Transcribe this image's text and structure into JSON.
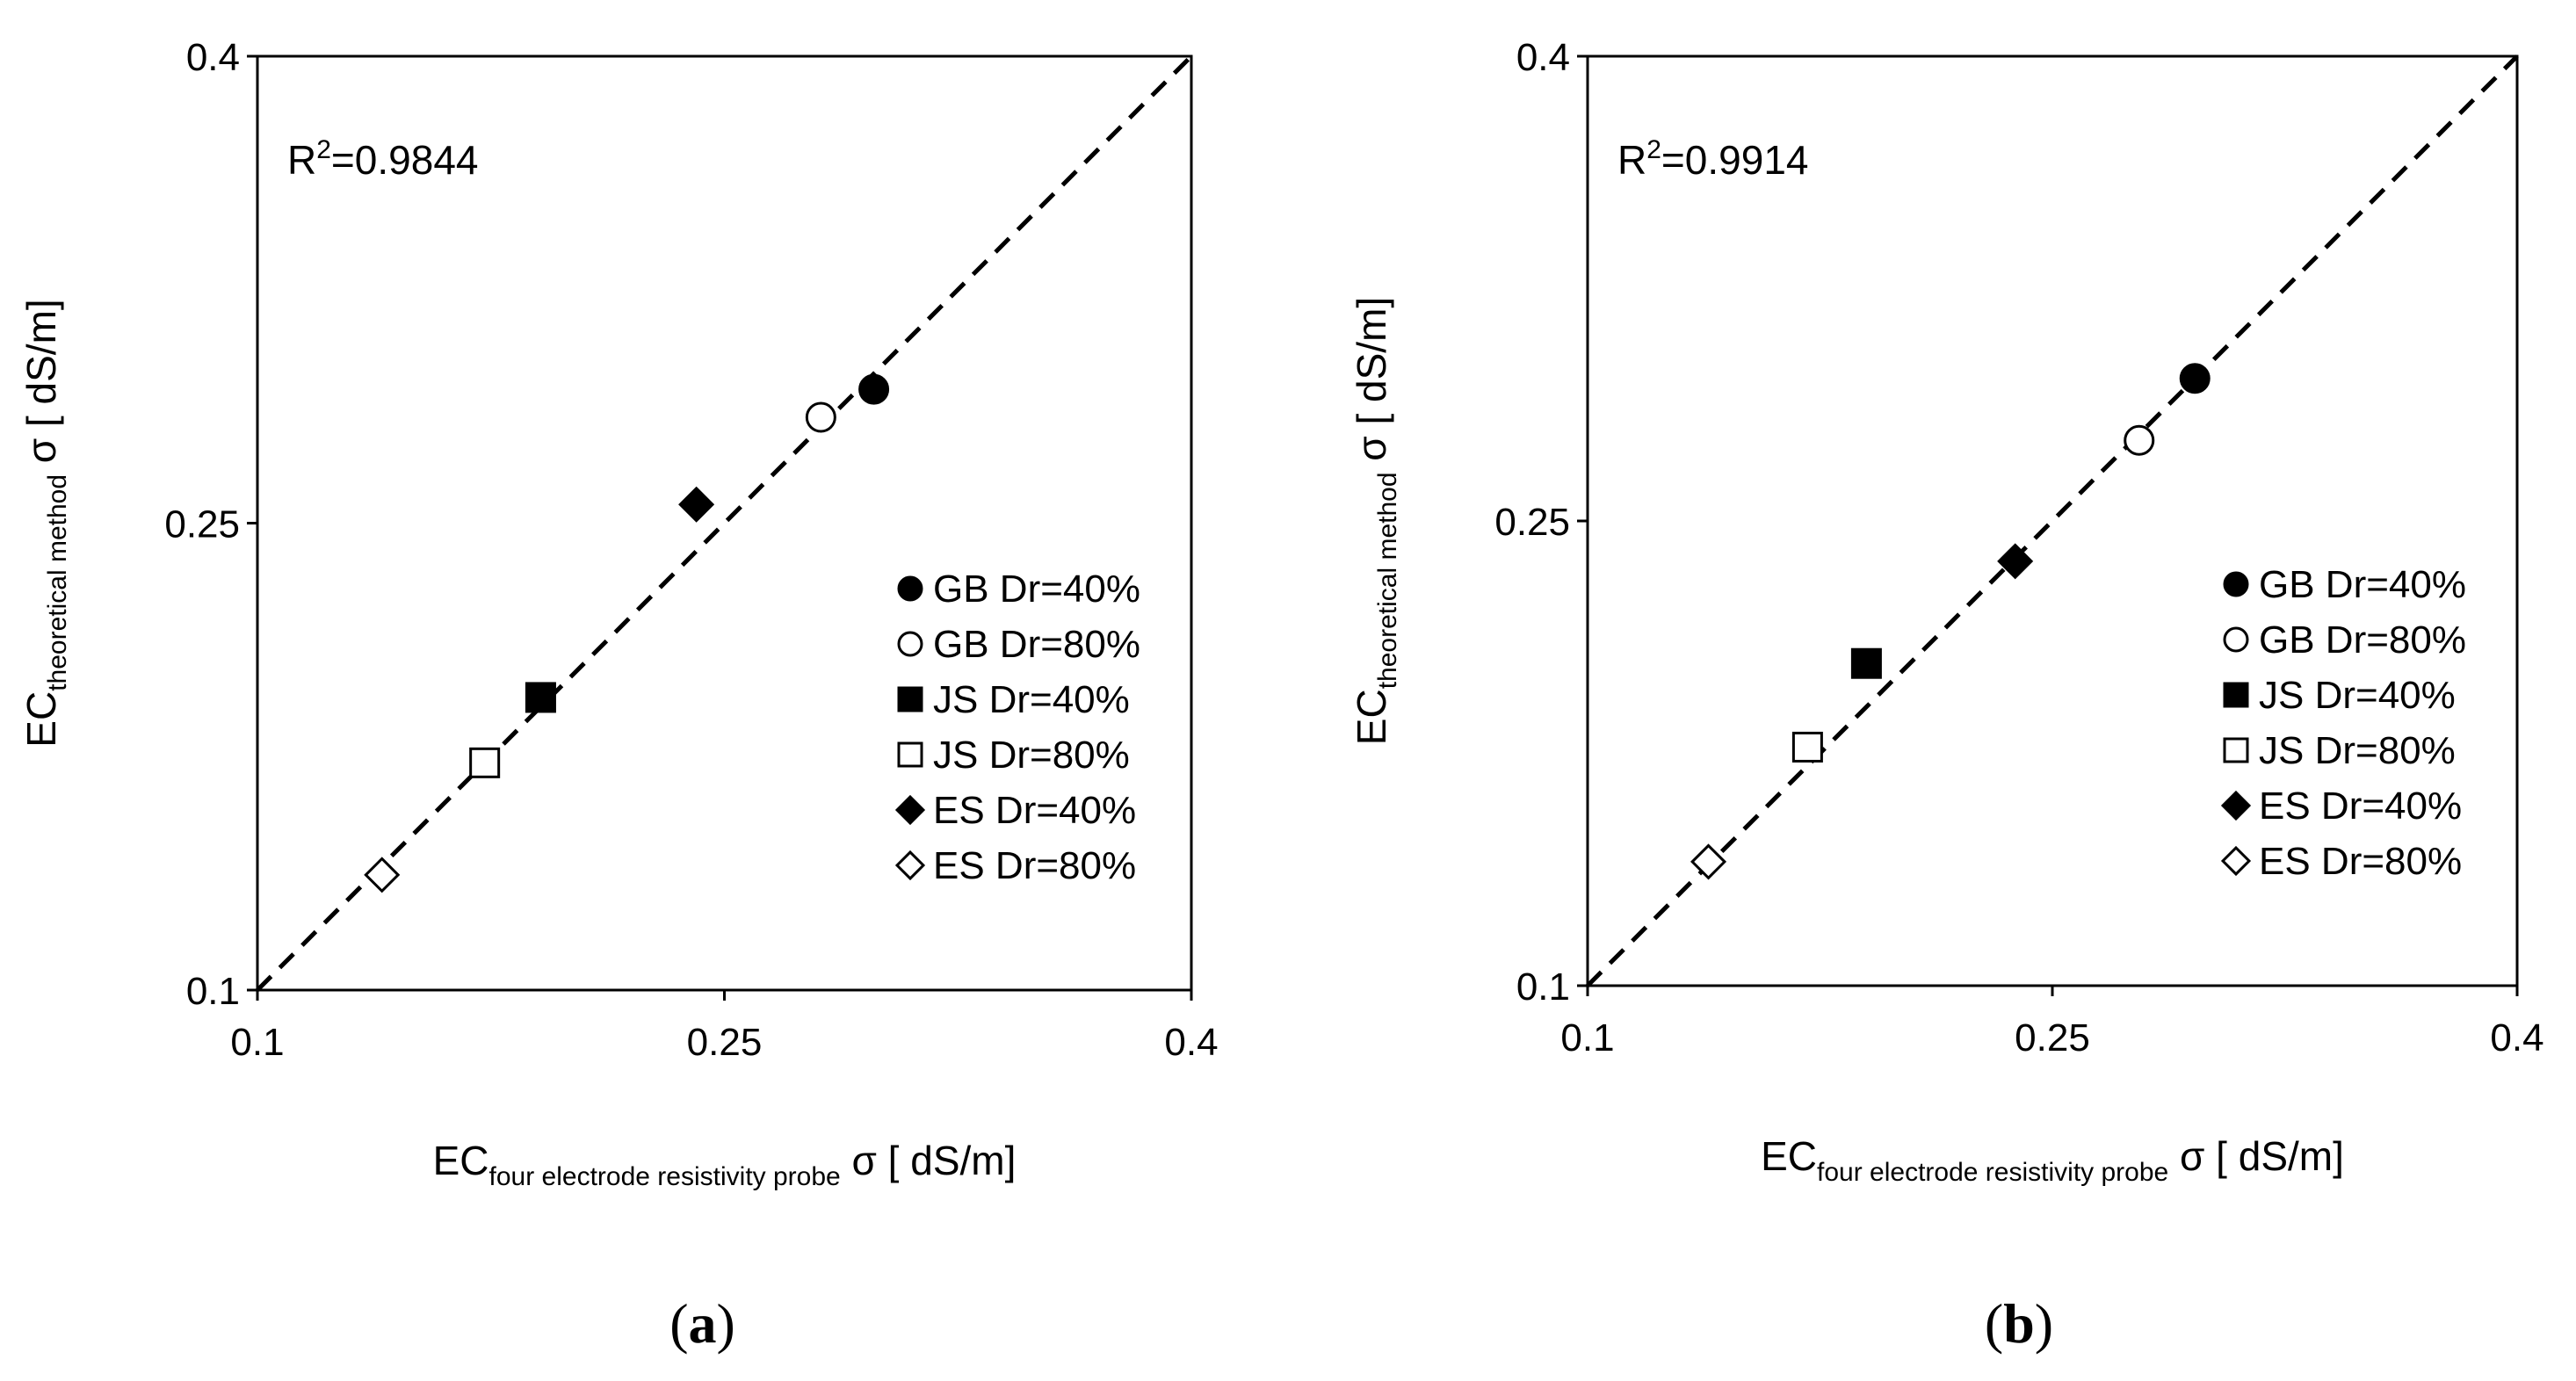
{
  "chart_data": [
    {
      "type": "scatter",
      "panel_label": "(a)",
      "panel_letter": "a",
      "annotation": {
        "r2_base": "R",
        "r2_sup": "2",
        "r2_value": "=0.9844"
      },
      "xlabel": {
        "main": "EC",
        "sub": "four electrode resistivity probe",
        "unit": " σ [ dS/m]"
      },
      "ylabel": {
        "main": "EC",
        "sub": "theoretical method",
        "unit": " σ [ dS/m]"
      },
      "xlim": [
        0.1,
        0.4
      ],
      "ylim": [
        0.1,
        0.4
      ],
      "ticks": [
        "0.1",
        "0.25",
        "0.4"
      ],
      "tick_values": [
        0.1,
        0.25,
        0.4
      ],
      "reference_line": "y = x (dashed)",
      "legend_position": "bottom-right",
      "series": [
        {
          "name": "GB Dr=40%",
          "marker": "circle-filled",
          "x": 0.298,
          "y": 0.293
        },
        {
          "name": "GB Dr=80%",
          "marker": "circle-open",
          "x": 0.281,
          "y": 0.284
        },
        {
          "name": "JS Dr=40%",
          "marker": "square-filled",
          "x": 0.191,
          "y": 0.194
        },
        {
          "name": "JS Dr=80%",
          "marker": "square-open",
          "x": 0.173,
          "y": 0.173
        },
        {
          "name": "ES Dr=40%",
          "marker": "diamond-filled",
          "x": 0.241,
          "y": 0.256
        },
        {
          "name": "ES Dr=80%",
          "marker": "diamond-open",
          "x": 0.14,
          "y": 0.137
        }
      ]
    },
    {
      "type": "scatter",
      "panel_label": "(b)",
      "panel_letter": "b",
      "annotation": {
        "r2_base": "R",
        "r2_sup": "2",
        "r2_value": "=0.9914"
      },
      "xlabel": {
        "main": "EC",
        "sub": "four electrode resistivity probe",
        "unit": " σ [ dS/m]"
      },
      "ylabel": {
        "main": "EC",
        "sub": "theoretical method",
        "unit": " σ [ dS/m]"
      },
      "xlim": [
        0.1,
        0.4
      ],
      "ylim": [
        0.1,
        0.4
      ],
      "ticks": [
        "0.1",
        "0.25",
        "0.4"
      ],
      "tick_values": [
        0.1,
        0.25,
        0.4
      ],
      "reference_line": "y = x (dashed)",
      "legend_position": "bottom-right",
      "series": [
        {
          "name": "GB Dr=40%",
          "marker": "circle-filled",
          "x": 0.296,
          "y": 0.296
        },
        {
          "name": "GB Dr=80%",
          "marker": "circle-open",
          "x": 0.278,
          "y": 0.276
        },
        {
          "name": "JS Dr=40%",
          "marker": "square-filled",
          "x": 0.19,
          "y": 0.204
        },
        {
          "name": "JS Dr=80%",
          "marker": "square-open",
          "x": 0.171,
          "y": 0.177
        },
        {
          "name": "ES Dr=40%",
          "marker": "diamond-filled",
          "x": 0.238,
          "y": 0.237
        },
        {
          "name": "ES Dr=80%",
          "marker": "diamond-open",
          "x": 0.139,
          "y": 0.14
        }
      ]
    }
  ]
}
